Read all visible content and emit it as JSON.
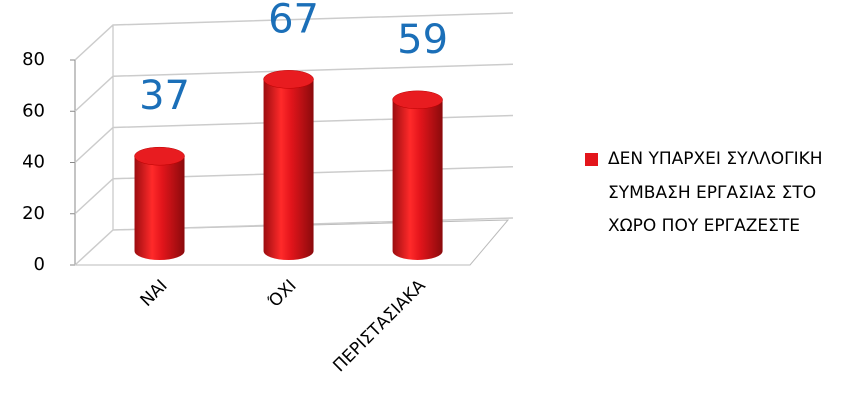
{
  "chart_data": {
    "type": "bar",
    "categories": [
      "ΝΑΙ",
      "ΌΧΙ",
      "ΠΕΡΙΣΤΑΣΙΑΚΑ"
    ],
    "series": [
      {
        "name": "ΔΕΝ ΥΠΑΡΧΕΙ ΣΥΛΛΟΓΙΚΗ ΣΥΜΒΑΣΗ ΕΡΓΑΣΙΑΣ ΣΤΟ ΧΩΡΟ ΠΟΥ ΕΡΓΑΖΕΣΤΕ",
        "color": "#e3151b",
        "values": [
          37,
          67,
          59
        ]
      }
    ],
    "ylim": [
      0,
      80
    ],
    "yticks": [
      0,
      20,
      40,
      60,
      80
    ],
    "grid": true,
    "legend": "right",
    "value_label_color": "#1b6fb8"
  }
}
